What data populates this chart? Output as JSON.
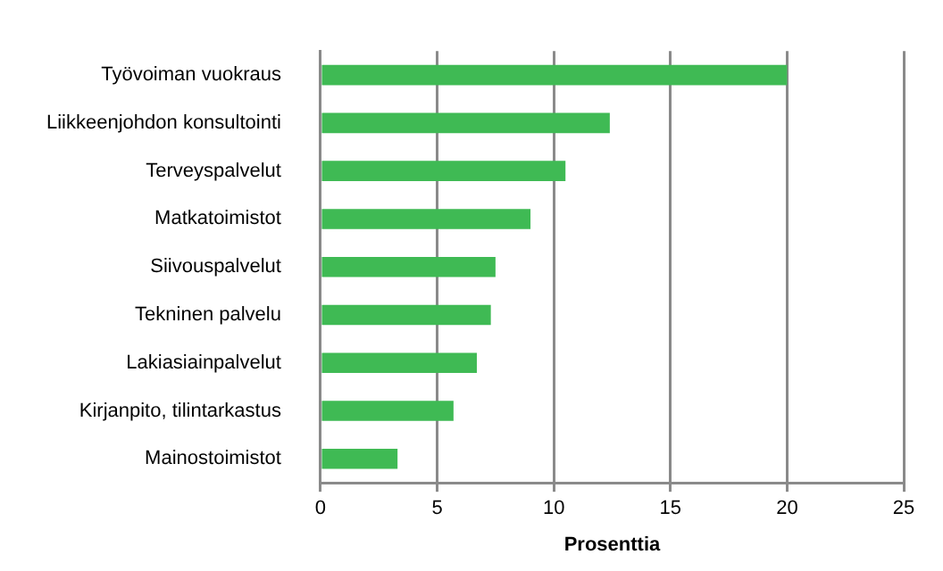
{
  "chart_data": {
    "type": "bar",
    "orientation": "horizontal",
    "xlabel": "Prosenttia",
    "categories": [
      "Työvoiman vuokraus",
      "Liikkeenjohdon konsultointi",
      "Terveyspalvelut",
      "Matkatoimistot",
      "Siivouspalvelut",
      "Tekninen palvelu",
      "Lakiasiainpalvelut",
      "Kirjanpito, tilintarkastus",
      "Mainostoimistot"
    ],
    "values": [
      20.0,
      12.4,
      10.5,
      9.0,
      7.5,
      7.3,
      6.7,
      5.7,
      3.3
    ],
    "color": "#3fba54",
    "xlim": [
      0,
      25
    ],
    "xticks": [
      0,
      5,
      10,
      15,
      20,
      25
    ],
    "grid": "x",
    "legend": false
  }
}
